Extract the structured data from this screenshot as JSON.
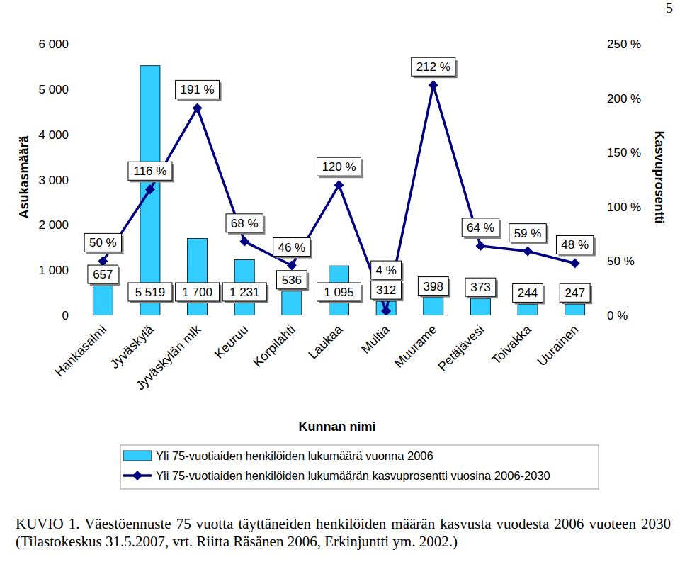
{
  "chart_data": {
    "type": "bar",
    "page_number": "5",
    "caption": "KUVIO 1. Väestöennuste 75 vuotta täyttäneiden henkilöiden määrän kasvusta vuodesta 2006 vuoteen 2030 (Tilastokeskus 31.5.2007, vrt. Riitta Räsänen 2006, Erkinjuntti ym. 2002.)",
    "x_label": "Kunnan nimi",
    "y_label": "Asukasmäärä",
    "y2_label": "Kasvuprosentti",
    "categories": [
      "Hankasalmi",
      "Jyväskylä",
      "Jyväskylän mlk",
      "Keuruu",
      "Korpilahti",
      "Laukaa",
      "Multia",
      "Muurame",
      "Petäjävesi",
      "Toivakka",
      "Uurainen"
    ],
    "series": [
      {
        "name": "Yli 75-vuotiaiden henkilöiden lukumäärä vuonna 2006",
        "type": "bar",
        "color": "#33ccff",
        "values": [
          657,
          5519,
          1700,
          1231,
          536,
          1095,
          312,
          398,
          373,
          244,
          247
        ],
        "value_labels": [
          "657",
          "5 519",
          "1 700",
          "1 231",
          "536",
          "1 095",
          "312",
          "398",
          "373",
          "244",
          "247"
        ]
      },
      {
        "name": "Yli 75-vuotiaiden henkilöiden lukumäärän kasvuprosentti vuosina 2006-2030",
        "type": "line",
        "axis": "y2",
        "color": "#000080",
        "marker": "diamond",
        "line_style": "solid",
        "values": [
          50,
          116,
          191,
          68,
          46,
          120,
          4,
          212,
          64,
          59,
          48
        ],
        "value_labels": [
          "50 %",
          "116 %",
          "191 %",
          "68 %",
          "46 %",
          "120 %",
          "4 %",
          "212 %",
          "64 %",
          "59 %",
          "48 %"
        ]
      }
    ],
    "ylim": [
      0,
      6000
    ],
    "yticks": [
      0,
      {
        "value": 1000,
        "label": "1 000"
      },
      {
        "value": 2000,
        "label": "2 000"
      },
      {
        "value": 3000,
        "label": "3 000"
      },
      {
        "value": 4000,
        "label": "4 000"
      },
      {
        "value": 5000,
        "label": "5 000"
      },
      {
        "value": 6000,
        "label": "6 000"
      }
    ],
    "y2lim": [
      0,
      250
    ],
    "y2ticks": [
      {
        "value": 0,
        "label": "0 %"
      },
      {
        "value": 50,
        "label": "50 %"
      },
      {
        "value": 100,
        "label": "100 %"
      },
      {
        "value": 150,
        "label": "150 %"
      },
      {
        "value": 200,
        "label": "200 %"
      },
      {
        "value": 250,
        "label": "250 %"
      }
    ],
    "grid": false,
    "legend": "bottom",
    "data_labels": true
  }
}
